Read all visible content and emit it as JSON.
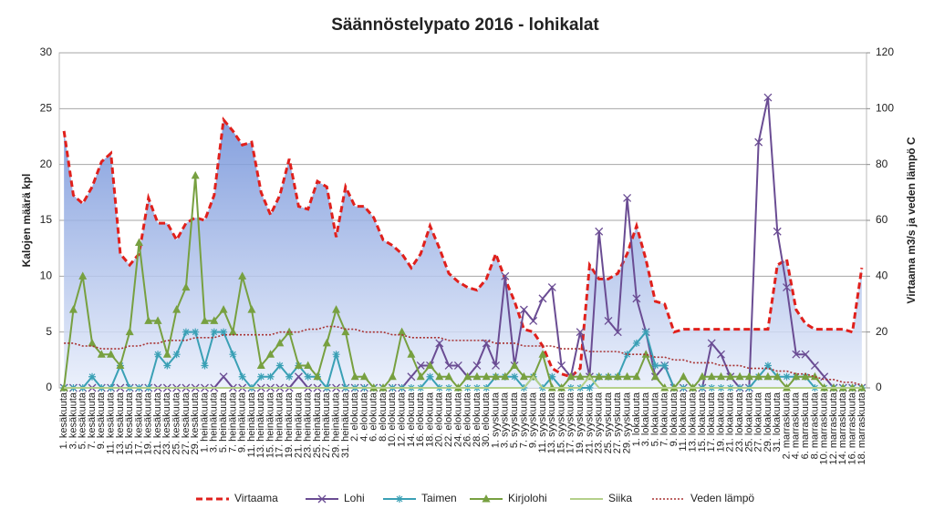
{
  "chart_data": {
    "type": "line",
    "title": "Säännöstelypato 2016 - lohikalat",
    "y_label": "Kalojen määrä kpl",
    "y2_label": "Virtaama m3/s  ja veden lämpö C",
    "ylim": [
      0,
      30
    ],
    "yticks": [
      0,
      5,
      10,
      15,
      20,
      25,
      30
    ],
    "y2lim": [
      0,
      120
    ],
    "y2ticks": [
      0,
      20,
      40,
      60,
      80,
      100,
      120
    ],
    "grid": true,
    "legend": "bottom",
    "categories": [
      "1. kesäkuuta",
      "3. kesäkuuta",
      "5. kesäkuuta",
      "7. kesäkuuta",
      "9. kesäkuuta",
      "11. kesäkuuta",
      "13. kesäkuuta",
      "15. kesäkuuta",
      "17. kesäkuuta",
      "19. kesäkuuta",
      "21. kesäkuuta",
      "23. kesäkuuta",
      "25. kesäkuuta",
      "27. kesäkuuta",
      "29. kesäkuuta",
      "1. heinäkuuta",
      "3. heinäkuuta",
      "5. heinäkuuta",
      "7. heinäkuuta",
      "9. heinäkuuta",
      "11. heinäkuuta",
      "13. heinäkuuta",
      "15. heinäkuuta",
      "17. heinäkuuta",
      "19. heinäkuuta",
      "21. heinäkuuta",
      "23. heinäkuuta",
      "25. heinäkuuta",
      "27. heinäkuuta",
      "29. heinäkuuta",
      "31. heinäkuuta",
      "2. elokuuta",
      "4. elokuuta",
      "6. elokuuta",
      "8. elokuuta",
      "10. elokuuta",
      "12. elokuuta",
      "14. elokuuta",
      "16. elokuuta",
      "18. elokuuta",
      "20. elokuuta",
      "22. elokuuta",
      "24. elokuuta",
      "26. elokuuta",
      "28. elokuuta",
      "30. elokuuta",
      "1. syyskuuta",
      "3. syyskuuta",
      "5. syyskuuta",
      "7. syyskuuta",
      "9. syyskuuta",
      "11. syyskuuta",
      "13. syyskuuta",
      "15. syyskuuta",
      "17. syyskuuta",
      "19. syyskuuta",
      "21. syyskuuta",
      "23. syyskuuta",
      "25. syyskuuta",
      "27. syyskuuta",
      "29. syyskuuta",
      "1. lokakuuta",
      "3. lokakuuta",
      "5. lokakuuta",
      "7. lokakuuta",
      "9. lokakuuta",
      "11. lokakuuta",
      "13. lokakuuta",
      "15. lokakuuta",
      "17. lokakuuta",
      "19. lokakuuta",
      "21. lokakuuta",
      "23. lokakuuta",
      "25. lokakuuta",
      "27. lokakuuta",
      "29. lokakuuta",
      "31. lokakuuta",
      "2. marraskuuta",
      "4. marraskuuta",
      "6. marraskuuta",
      "8. marraskuuta",
      "10. marraskuuta",
      "12. marraskuuta",
      "14. marraskuuta",
      "16. marraskuuta",
      "18. marraskuuta"
    ],
    "series": [
      {
        "name": "Virtaama",
        "color": "#e0201c",
        "axis": "y2",
        "line_style": "dashed",
        "area": true,
        "marker": "none",
        "values": [
          92,
          69,
          66,
          72,
          81,
          84,
          48,
          44,
          48,
          68,
          59,
          59,
          53,
          59,
          61,
          60,
          69,
          96,
          92,
          87,
          88,
          70,
          62,
          69,
          82,
          65,
          64,
          74,
          72,
          54,
          72,
          65,
          65,
          61,
          53,
          51,
          48,
          43,
          48,
          58,
          50,
          41,
          38,
          36,
          35,
          39,
          48,
          39,
          31,
          21,
          20,
          15,
          7,
          5,
          4,
          7,
          44,
          39,
          39,
          41,
          48,
          58,
          46,
          31,
          30,
          20,
          21,
          21,
          21,
          21,
          21,
          21,
          21,
          21,
          21,
          21,
          44,
          46,
          28,
          23,
          21,
          21,
          21,
          21,
          20,
          43
        ]
      },
      {
        "name": "Lohi",
        "color": "#6a4c93",
        "line_style": "solid",
        "marker": "x",
        "values": [
          0,
          0,
          0,
          0,
          0,
          0,
          0,
          0,
          0,
          0,
          0,
          0,
          0,
          0,
          0,
          0,
          0,
          1,
          0,
          0,
          0,
          0,
          0,
          0,
          0,
          1,
          0,
          0,
          0,
          0,
          0,
          0,
          0,
          0,
          0,
          0,
          0,
          1,
          2,
          2,
          4,
          2,
          2,
          1,
          2,
          4,
          2,
          10,
          2,
          7,
          6,
          8,
          9,
          2,
          1,
          5,
          1,
          14,
          6,
          5,
          17,
          8,
          5,
          1,
          2,
          0,
          0,
          0,
          0,
          4,
          3,
          1,
          0,
          0,
          22,
          26,
          14,
          9,
          3,
          3,
          2,
          1,
          0,
          0,
          0,
          0
        ]
      },
      {
        "name": "Taimen",
        "color": "#3aa0b5",
        "line_style": "solid",
        "marker": "star",
        "values": [
          0,
          0,
          0,
          1,
          0,
          0,
          2,
          0,
          0,
          0,
          3,
          2,
          3,
          5,
          5,
          2,
          5,
          5,
          3,
          1,
          0,
          1,
          1,
          2,
          1,
          2,
          1,
          1,
          0,
          3,
          0,
          0,
          0,
          0,
          0,
          0,
          0,
          0,
          0,
          1,
          0,
          0,
          0,
          0,
          0,
          0,
          1,
          1,
          1,
          0,
          1,
          0,
          1,
          0,
          0,
          0,
          0,
          1,
          1,
          1,
          3,
          4,
          5,
          2,
          2,
          0,
          0,
          0,
          0,
          0,
          0,
          0,
          0,
          0,
          1,
          2,
          1,
          1,
          1,
          1,
          0,
          0,
          0,
          0,
          0,
          0
        ]
      },
      {
        "name": "Kirjolohi",
        "color": "#77a040",
        "line_style": "solid",
        "marker": "triangle",
        "values": [
          0,
          7,
          10,
          4,
          3,
          3,
          2,
          5,
          13,
          6,
          6,
          3,
          7,
          9,
          19,
          6,
          6,
          7,
          5,
          10,
          7,
          2,
          3,
          4,
          5,
          2,
          2,
          1,
          4,
          7,
          5,
          1,
          1,
          0,
          0,
          1,
          5,
          3,
          1,
          2,
          1,
          1,
          0,
          1,
          1,
          1,
          1,
          1,
          2,
          1,
          1,
          3,
          0,
          0,
          1,
          1,
          1,
          1,
          1,
          1,
          1,
          1,
          3,
          1,
          0,
          0,
          1,
          0,
          1,
          1,
          1,
          1,
          1,
          1,
          1,
          1,
          1,
          0,
          1,
          1,
          1,
          0,
          0,
          0,
          0,
          0
        ]
      },
      {
        "name": "Siika",
        "color": "#b4d08a",
        "line_style": "solid",
        "marker": "none",
        "values": [
          0,
          0,
          0,
          0,
          0,
          0,
          0,
          0,
          0,
          0,
          0,
          0,
          0,
          0,
          0,
          0,
          0,
          0,
          0,
          0,
          0,
          0,
          0,
          0,
          0,
          0,
          0,
          0,
          0,
          0,
          0,
          0,
          0,
          0,
          0,
          0,
          0,
          0,
          0,
          0,
          0,
          0,
          0,
          0,
          0,
          0,
          0,
          0,
          0,
          0,
          1,
          0,
          0,
          0,
          0,
          0,
          1,
          0,
          0,
          0,
          0,
          0,
          0,
          0,
          0,
          0,
          0,
          0,
          0,
          0,
          0,
          0,
          0,
          0,
          0,
          0,
          0,
          0,
          0,
          0,
          0,
          0,
          0,
          0,
          0,
          0
        ]
      },
      {
        "name": "Veden lämpö",
        "color": "#a83232",
        "axis": "y2",
        "line_style": "dotted",
        "marker": "none",
        "values": [
          16,
          16,
          15,
          15,
          14,
          14,
          14,
          15,
          15,
          16,
          16,
          17,
          17,
          17,
          18,
          18,
          18,
          19,
          19,
          19,
          19,
          19,
          19,
          20,
          20,
          20,
          21,
          21,
          22,
          22,
          21,
          21,
          20,
          20,
          20,
          19,
          19,
          18,
          18,
          18,
          18,
          17,
          17,
          17,
          17,
          17,
          16,
          16,
          16,
          15,
          15,
          15,
          15,
          14,
          14,
          14,
          13,
          13,
          13,
          13,
          12,
          12,
          12,
          11,
          11,
          10,
          10,
          9,
          9,
          9,
          8,
          8,
          8,
          7,
          7,
          7,
          6,
          6,
          5,
          5,
          4,
          3,
          3,
          2,
          2,
          1
        ]
      }
    ]
  }
}
